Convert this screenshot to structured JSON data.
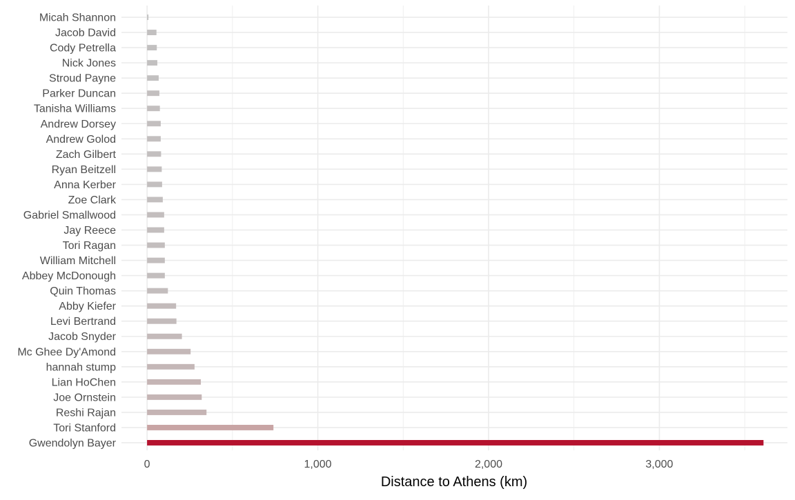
{
  "chart_data": {
    "type": "bar",
    "orientation": "horizontal",
    "title": "",
    "xlabel": "Distance to Athens (km)",
    "ylabel": "",
    "xlim": [
      -150,
      3750
    ],
    "x_ticks": [
      0,
      1000,
      2000,
      3000
    ],
    "x_tick_labels": [
      "0",
      "1,000",
      "2,000",
      "3,000"
    ],
    "grid": true,
    "legend": "none",
    "categories": [
      "Micah Shannon",
      "Jacob David",
      "Cody Petrella",
      "Nick Jones",
      "Stroud Payne",
      "Parker Duncan",
      "Tanisha Williams",
      "Andrew Dorsey",
      "Andrew Golod",
      "Zach Gilbert",
      "Ryan Beitzell",
      "Anna Kerber",
      "Zoe Clark",
      "Gabriel Smallwood",
      "Jay Reece",
      "Tori Ragan",
      "William Mitchell",
      "Abbey McDonough",
      "Quin Thomas",
      "Abby Kiefer",
      "Levi Bertrand",
      "Jacob Snyder",
      "Mc Ghee Dy'Amond",
      "hannah stump",
      "Lian HoChen",
      "Joe Ornstein",
      "Reshi Rajan",
      "Tori Stanford",
      "Gwendolyn Bayer"
    ],
    "values": [
      8,
      55,
      57,
      60,
      68,
      72,
      75,
      80,
      80,
      82,
      86,
      88,
      92,
      100,
      100,
      104,
      104,
      104,
      122,
      170,
      172,
      204,
      255,
      278,
      315,
      320,
      348,
      740,
      3610
    ],
    "colors": {
      "highlight": "#B5122E",
      "bar_low": "#C2C2C2",
      "bar_high": "#C8A4A4",
      "grid": "#EBEBEB",
      "text": "#4D4D4D",
      "title": "#000000"
    },
    "highlight_category": "Gwendolyn Bayer"
  }
}
